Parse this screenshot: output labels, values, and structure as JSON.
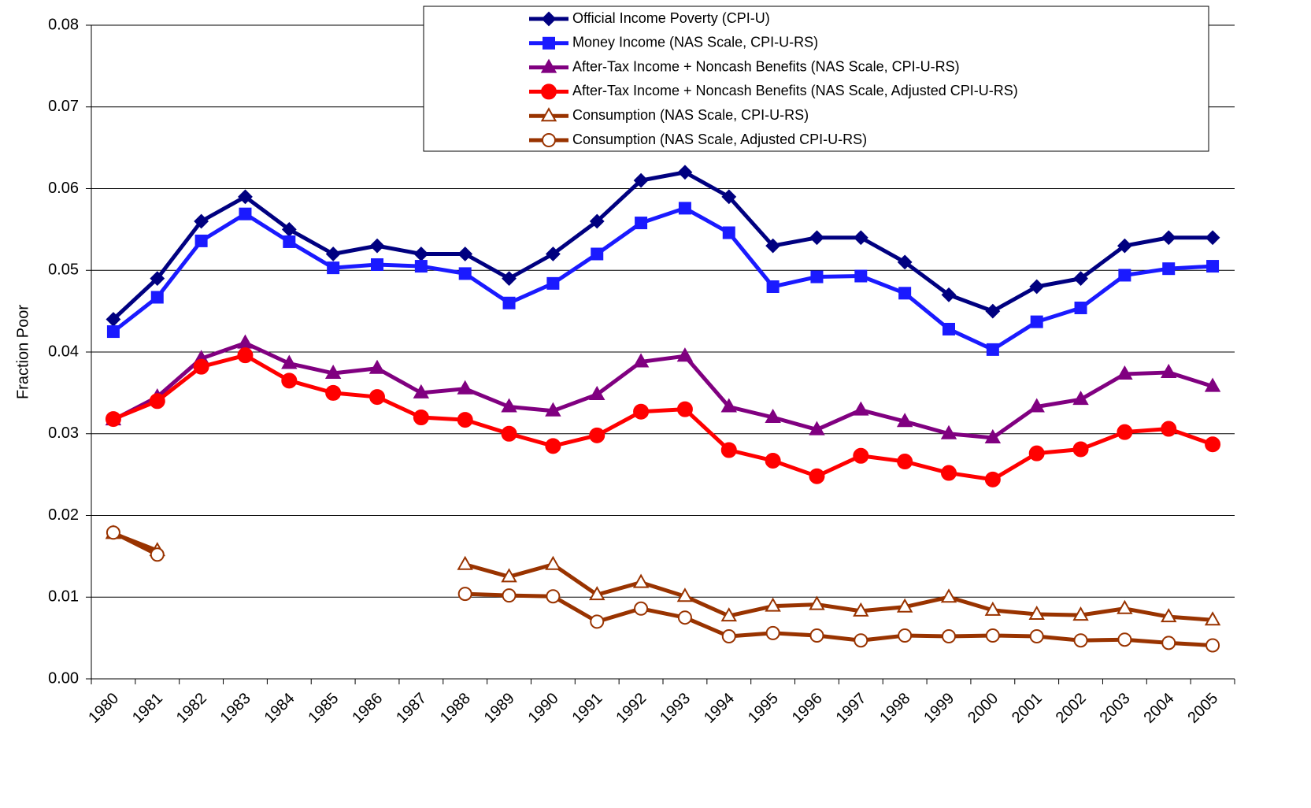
{
  "chart_data": {
    "type": "line",
    "y_label": "Fraction Poor",
    "categories": [
      "1980",
      "1981",
      "1982",
      "1983",
      "1984",
      "1985",
      "1986",
      "1987",
      "1988",
      "1989",
      "1990",
      "1991",
      "1992",
      "1993",
      "1994",
      "1995",
      "1996",
      "1997",
      "1998",
      "1999",
      "2000",
      "2001",
      "2002",
      "2003",
      "2004",
      "2005"
    ],
    "ylim": [
      0,
      0.08
    ],
    "yticks": [
      {
        "value": 0,
        "label": "0.00"
      },
      0.01,
      0.02,
      0.03,
      0.04,
      0.05,
      0.06,
      0.07,
      0.08
    ],
    "grid": true,
    "legend": "top",
    "series": [
      {
        "name": "Official Income Poverty (CPI-U)",
        "color": "#000080",
        "marker": "diamond",
        "values": [
          0.044,
          0.049,
          0.056,
          0.059,
          0.055,
          0.052,
          0.053,
          0.052,
          0.052,
          0.049,
          0.052,
          0.056,
          0.061,
          0.062,
          0.059,
          0.053,
          0.054,
          0.054,
          0.051,
          0.047,
          0.045,
          0.048,
          0.049,
          0.053,
          0.054,
          0.054
        ]
      },
      {
        "name": "Money Income (NAS Scale, CPI-U-RS)",
        "color": "#1a1aff",
        "marker": "square",
        "values": [
          0.0425,
          0.0467,
          0.0536,
          0.0569,
          0.0535,
          0.0503,
          0.0507,
          0.0505,
          0.0496,
          0.046,
          0.0484,
          0.052,
          0.0558,
          0.0576,
          0.0546,
          0.048,
          0.0492,
          0.0493,
          0.0472,
          0.0428,
          0.0403,
          0.0437,
          0.0454,
          0.0494,
          0.0502,
          0.0505
        ]
      },
      {
        "name": "After-Tax Income + Noncash Benefits (NAS Scale, CPI-U-RS)",
        "color": "#800080",
        "marker": "triangle",
        "values": [
          0.0317,
          0.0345,
          0.0392,
          0.0411,
          0.0386,
          0.0374,
          0.038,
          0.035,
          0.0355,
          0.0333,
          0.0328,
          0.0348,
          0.0388,
          0.0395,
          0.0333,
          0.032,
          0.0305,
          0.0329,
          0.0315,
          0.03,
          0.0295,
          0.0333,
          0.0342,
          0.0373,
          0.0375,
          0.0358
        ]
      },
      {
        "name": "After-Tax Income + Noncash Benefits (NAS Scale, Adjusted CPI-U-RS)",
        "color": "#ff0000",
        "marker": "circle",
        "values": [
          0.0318,
          0.034,
          0.0382,
          0.0396,
          0.0365,
          0.035,
          0.0345,
          0.032,
          0.0317,
          0.03,
          0.0285,
          0.0298,
          0.0327,
          0.033,
          0.028,
          0.0267,
          0.0248,
          0.0273,
          0.0266,
          0.0252,
          0.0244,
          0.0276,
          0.0281,
          0.0302,
          0.0306,
          0.0287
        ]
      },
      {
        "name": "Consumption (NAS Scale, CPI-U-RS)",
        "color": "#993300",
        "marker": "triangle-open",
        "values": [
          0.0178,
          0.0157,
          null,
          null,
          null,
          null,
          null,
          null,
          0.014,
          0.0125,
          0.014,
          0.0103,
          0.0118,
          0.0101,
          0.0077,
          0.0089,
          0.0091,
          0.0083,
          0.0088,
          0.01,
          0.0084,
          0.0079,
          0.0078,
          0.0086,
          0.0076,
          0.0072
        ]
      },
      {
        "name": "Consumption (NAS Scale, Adjusted CPI-U-RS)",
        "color": "#993300",
        "marker": "circle-open",
        "values": [
          0.0179,
          0.0152,
          null,
          null,
          null,
          null,
          null,
          null,
          0.0104,
          0.0102,
          0.0101,
          0.007,
          0.0086,
          0.0075,
          0.0052,
          0.0056,
          0.0053,
          0.0047,
          0.0053,
          0.0052,
          0.0053,
          0.0052,
          0.0047,
          0.0048,
          0.0044,
          0.0041
        ]
      }
    ]
  }
}
